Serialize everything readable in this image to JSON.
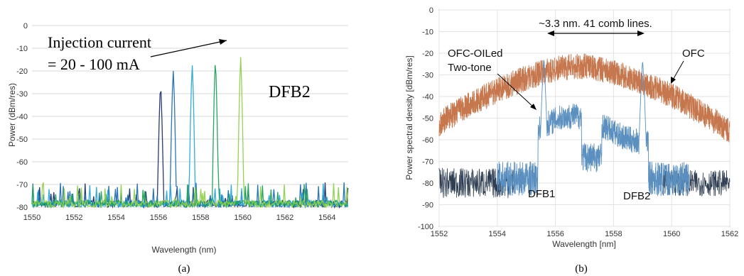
{
  "chart_data": [
    {
      "type": "line",
      "panel_label": "(a)",
      "xlabel": "Wavelength (nm)",
      "ylabel": "Power (dBm/res)",
      "xlim": [
        1550,
        1565
      ],
      "ylim": [
        -80,
        0
      ],
      "x_ticks": [
        "1550",
        "1552",
        "1554",
        "1556",
        "1558",
        "1560",
        "1562",
        "1564"
      ],
      "y_ticks": [
        "0",
        "-10",
        "-20",
        "-30",
        "-40",
        "-50",
        "-60",
        "-70",
        "-80"
      ],
      "annotation_line1": "Injection current",
      "annotation_line2": "= 20 - 100 mA",
      "annotation_right": "DFB2",
      "noise_floor": -76,
      "series": [
        {
          "peak_x": 1556.1,
          "peak_y": -26,
          "color": "#1b2f6b"
        },
        {
          "peak_x": 1556.7,
          "peak_y": -19.5,
          "color": "#1f6fb3"
        },
        {
          "peak_x": 1557.6,
          "peak_y": -17,
          "color": "#2aa7d9"
        },
        {
          "peak_x": 1558.7,
          "peak_y": -15,
          "color": "#1fa05a"
        },
        {
          "peak_x": 1559.9,
          "peak_y": -14,
          "color": "#8ed04a"
        }
      ]
    },
    {
      "type": "line",
      "panel_label": "(b)",
      "xlabel": "Wavelength [nm]",
      "ylabel": "Power spectral density [dBm/res]",
      "xlim": [
        1552,
        1562
      ],
      "ylim": [
        -100,
        0
      ],
      "x_ticks": [
        "1552",
        "1554",
        "1556",
        "1558",
        "1560",
        "1562"
      ],
      "y_ticks": [
        "0",
        "-10",
        "-20",
        "-30",
        "-40",
        "-50",
        "-60",
        "-70",
        "-80",
        "-90",
        "-100"
      ],
      "annotation_top": "~3.3 nm. 41 comb lines.",
      "label_ofc_oiled_1": "OFC-OILed",
      "label_ofc_oiled_2": "Two-tone",
      "label_ofc": "OFC",
      "label_dfb1": "DFB1",
      "label_dfb2": "DFB2",
      "series": [
        {
          "role": "OFC",
          "center": 1556.8,
          "peak": -20,
          "edge_level": -50,
          "color": "#c0683a"
        },
        {
          "role": "OFC-OILed two-tone",
          "tone1_x": 1555.6,
          "tone1_y": -23,
          "tone2_x": 1559.0,
          "tone2_y": -24,
          "floor": -78,
          "color": "#5a8fbf"
        },
        {
          "role": "background",
          "floor": -80,
          "color": "#2e3d52"
        }
      ]
    }
  ]
}
